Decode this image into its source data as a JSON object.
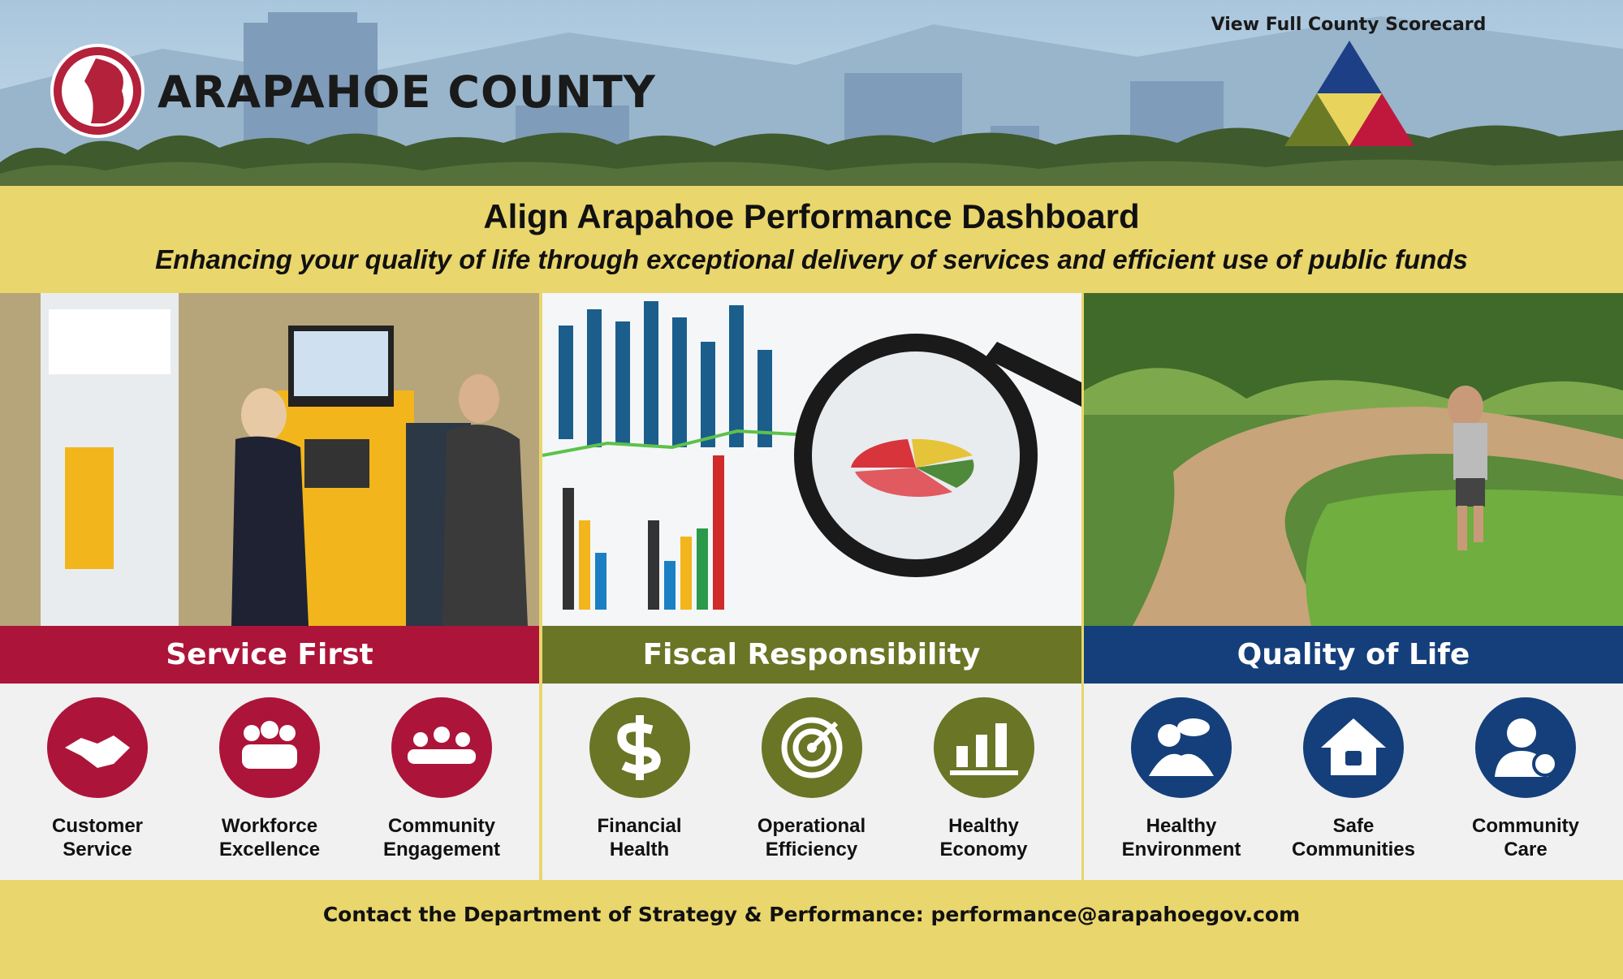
{
  "header": {
    "logo_text": "ARAPAHOE COUNTY",
    "scorecard_link": "View Full County Scorecard"
  },
  "banner": {
    "title": "Align Arapahoe Performance Dashboard",
    "subtitle": "Enhancing your quality of life through exceptional delivery of services and efficient use of public funds"
  },
  "pillars": [
    {
      "name": "Service First",
      "color": "#ad1439",
      "items": [
        "Customer Service",
        "Workforce Excellence",
        "Community Engagement"
      ]
    },
    {
      "name": "Fiscal Responsibility",
      "color": "#6a7526",
      "items": [
        "Financial Health",
        "Operational Efficiency",
        "Healthy Economy"
      ]
    },
    {
      "name": "Quality of Life",
      "color": "#143f7b",
      "items": [
        "Healthy Environment",
        "Safe Communities",
        "Community Care"
      ]
    }
  ],
  "footer": {
    "contact": "Contact the Department of Strategy & Performance: performance@arapahoegov.com"
  }
}
